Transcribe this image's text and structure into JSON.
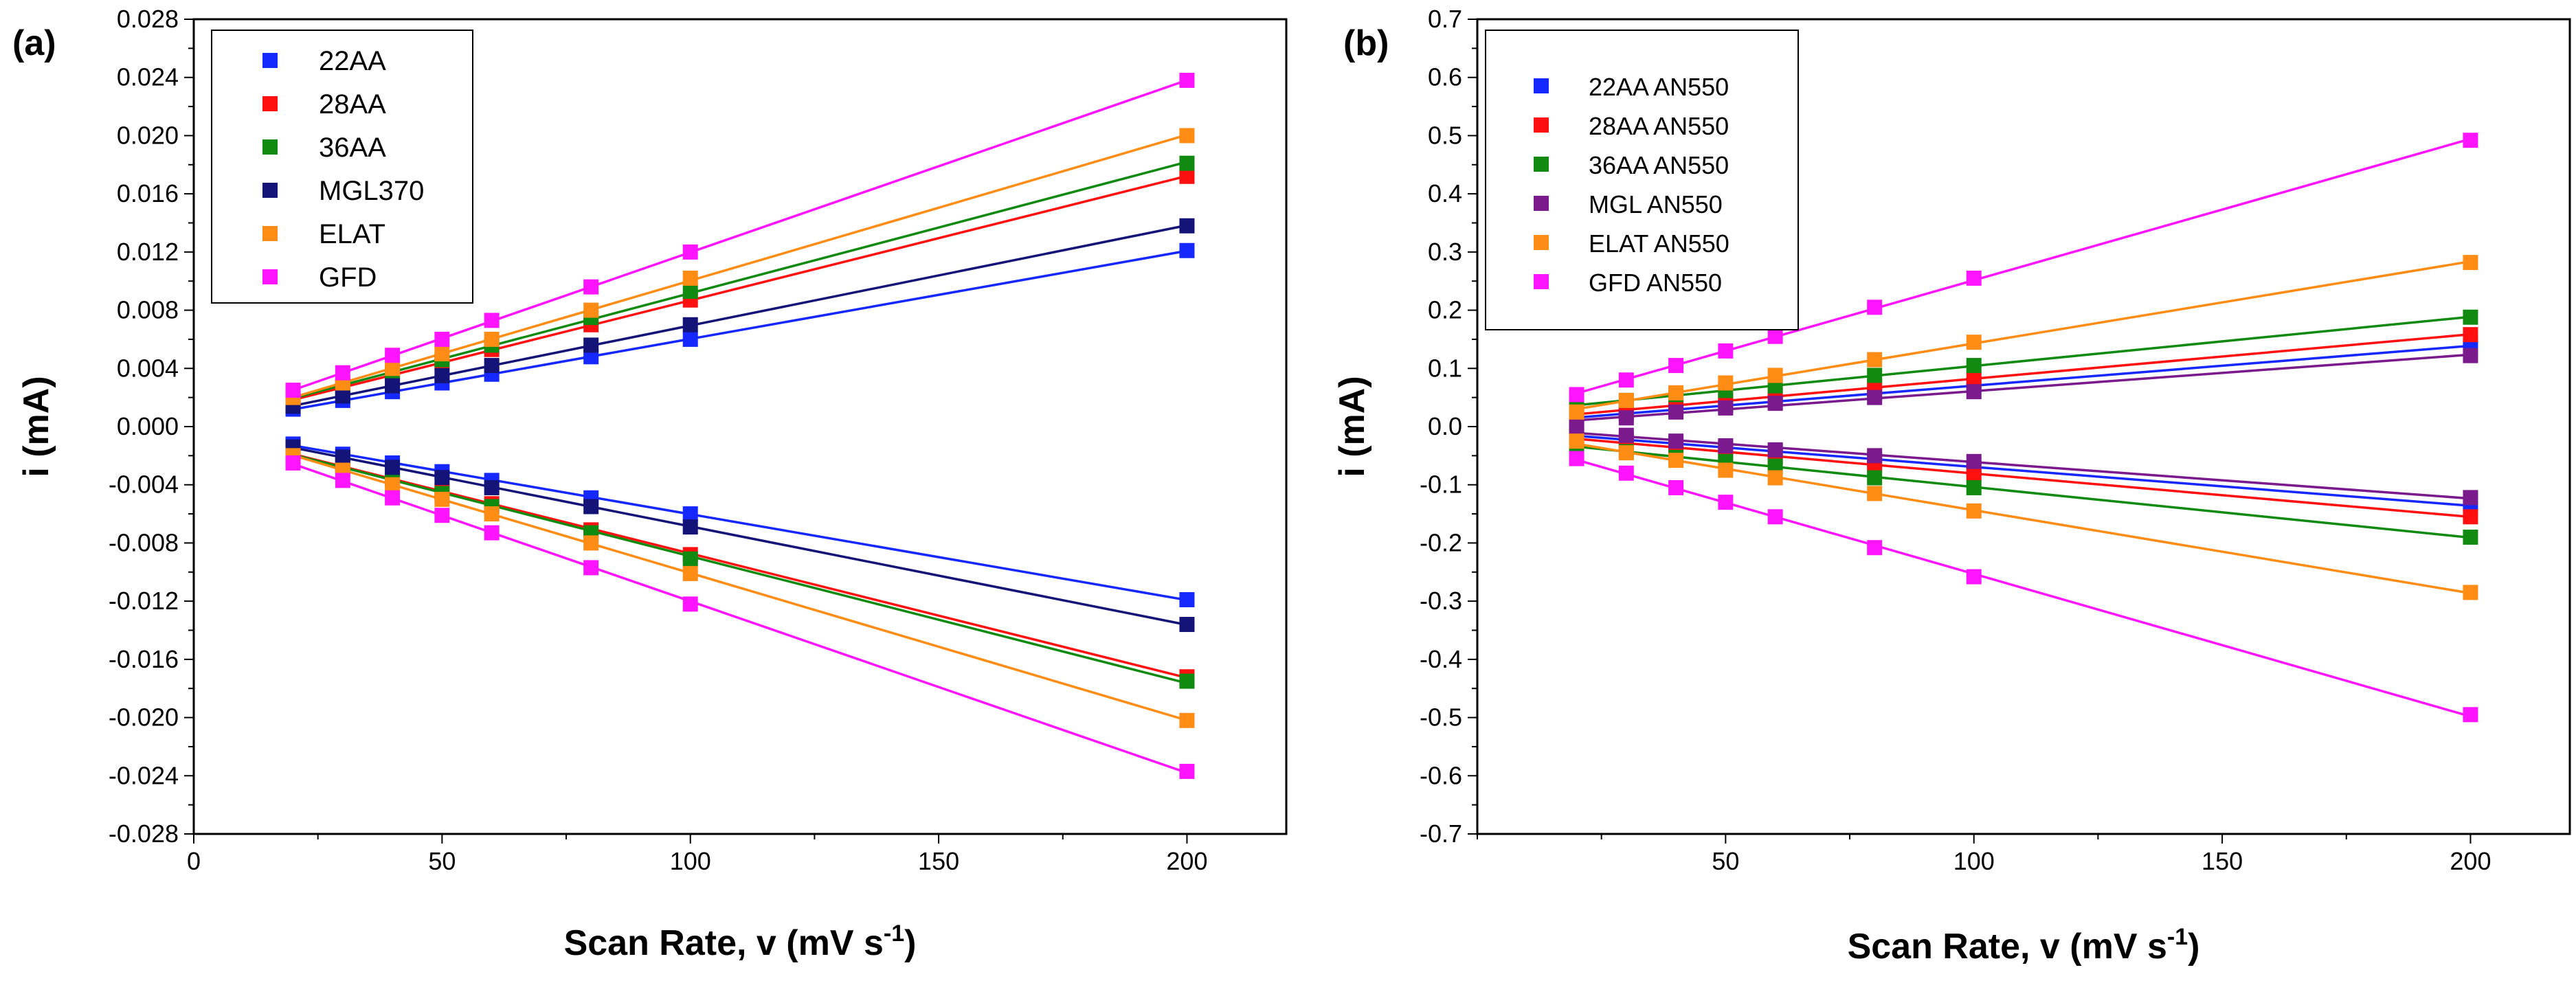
{
  "colors": {
    "22AA": "#1428ff",
    "28AA": "#ff1010",
    "36AA": "#108a10",
    "MGL370": "#141478",
    "ELAT": "#ff8c14",
    "GFD": "#ff14ff",
    "MGL_AN550": "#7a1a8c"
  },
  "chart_data": [
    {
      "panel": "(a)",
      "type": "scatter",
      "xlabel": "Scan Rate, v (mV s",
      "xlabel_sup": "-1",
      "xlabel_close": ")",
      "ylabel": "i (mA)",
      "xlim": [
        0,
        220
      ],
      "ylim": [
        -0.028,
        0.028
      ],
      "xticks": [
        0,
        50,
        100,
        150,
        200
      ],
      "yticks": [
        -0.028,
        -0.024,
        -0.02,
        -0.016,
        -0.012,
        -0.008,
        -0.004,
        0.0,
        0.004,
        0.008,
        0.012,
        0.016,
        0.02,
        0.024,
        0.028
      ],
      "ytick_labels": [
        "-0.028",
        "-0.024",
        "-0.020",
        "-0.016",
        "-0.012",
        "-0.008",
        "-0.004",
        "0.000",
        "0.004",
        "0.008",
        "0.012",
        "0.016",
        "0.020",
        "0.024",
        "0.028"
      ],
      "legend_position": "top-left",
      "x": [
        20,
        30,
        40,
        50,
        60,
        80,
        100,
        200
      ],
      "series": [
        {
          "name": "22AA",
          "color_key": "22AA",
          "positive": [
            0.0012,
            0.0018,
            0.0024,
            0.003,
            0.0036,
            0.0048,
            0.006,
            0.0121
          ],
          "negative": [
            -0.0012,
            -0.0019,
            -0.0025,
            -0.0031,
            -0.0037,
            -0.0049,
            -0.006,
            -0.0119
          ]
        },
        {
          "name": "28AA",
          "color_key": "28AA",
          "positive": [
            0.0018,
            0.0027,
            0.0035,
            0.0044,
            0.0053,
            0.007,
            0.0087,
            0.0172
          ],
          "negative": [
            -0.0018,
            -0.0027,
            -0.0036,
            -0.0045,
            -0.0053,
            -0.0071,
            -0.0088,
            -0.0172
          ]
        },
        {
          "name": "36AA",
          "color_key": "36AA",
          "positive": [
            0.0019,
            0.0028,
            0.0037,
            0.0046,
            0.0056,
            0.0075,
            0.0093,
            0.0181
          ],
          "negative": [
            -0.0018,
            -0.0027,
            -0.0036,
            -0.0046,
            -0.0055,
            -0.0073,
            -0.0091,
            -0.0175
          ]
        },
        {
          "name": "MGL370",
          "color_key": "MGL370",
          "positive": [
            0.0014,
            0.0021,
            0.0028,
            0.0035,
            0.0042,
            0.0056,
            0.007,
            0.0138
          ],
          "negative": [
            -0.0014,
            -0.0021,
            -0.0028,
            -0.0035,
            -0.0042,
            -0.0055,
            -0.0069,
            -0.0136
          ]
        },
        {
          "name": "ELAT",
          "color_key": "ELAT",
          "positive": [
            0.002,
            0.003,
            0.004,
            0.005,
            0.006,
            0.008,
            0.0102,
            0.02
          ],
          "negative": [
            -0.002,
            -0.003,
            -0.004,
            -0.005,
            -0.006,
            -0.008,
            -0.0101,
            -0.0202
          ]
        },
        {
          "name": "GFD",
          "color_key": "GFD",
          "positive": [
            0.0025,
            0.0037,
            0.0049,
            0.006,
            0.0073,
            0.0096,
            0.012,
            0.0238
          ],
          "negative": [
            -0.0025,
            -0.0037,
            -0.0049,
            -0.0061,
            -0.0073,
            -0.0097,
            -0.0122,
            -0.0237
          ]
        }
      ]
    },
    {
      "panel": "(b)",
      "type": "scatter",
      "xlabel": "Scan Rate, v (mV s",
      "xlabel_sup": "-1",
      "xlabel_close": ")",
      "ylabel": "i (mA)",
      "xlim": [
        0,
        220
      ],
      "ylim": [
        -0.7,
        0.7
      ],
      "xticks": [
        50,
        100,
        150,
        200
      ],
      "yticks": [
        -0.7,
        -0.6,
        -0.5,
        -0.4,
        -0.3,
        -0.2,
        -0.1,
        0.0,
        0.1,
        0.2,
        0.3,
        0.4,
        0.5,
        0.6,
        0.7
      ],
      "ytick_labels": [
        "-0.7",
        "-0.6",
        "-0.5",
        "-0.4",
        "-0.3",
        "-0.2",
        "-0.1",
        "0.0",
        "0.1",
        "0.2",
        "0.3",
        "0.4",
        "0.5",
        "0.6",
        "0.7"
      ],
      "legend_position": "top-left",
      "x": [
        20,
        30,
        40,
        50,
        60,
        80,
        100,
        200
      ],
      "series": [
        {
          "name": "22AA AN550",
          "color_key": "22AA",
          "positive": [
            0.015,
            0.022,
            0.029,
            0.036,
            0.043,
            0.057,
            0.072,
            0.138
          ],
          "negative": [
            -0.015,
            -0.022,
            -0.029,
            -0.036,
            -0.043,
            -0.057,
            -0.071,
            -0.135
          ]
        },
        {
          "name": "28AA AN550",
          "color_key": "28AA",
          "positive": [
            0.02,
            0.028,
            0.036,
            0.045,
            0.053,
            0.068,
            0.082,
            0.158
          ],
          "negative": [
            -0.02,
            -0.028,
            -0.036,
            -0.044,
            -0.052,
            -0.066,
            -0.08,
            -0.155
          ]
        },
        {
          "name": "36AA AN550",
          "color_key": "36AA",
          "positive": [
            0.035,
            0.045,
            0.055,
            0.062,
            0.07,
            0.088,
            0.105,
            0.188
          ],
          "negative": [
            -0.033,
            -0.043,
            -0.053,
            -0.06,
            -0.068,
            -0.088,
            -0.105,
            -0.19
          ]
        },
        {
          "name": "MGL AN550",
          "color_key": "MGL_AN550",
          "positive": [
            0.005,
            0.015,
            0.025,
            0.032,
            0.04,
            0.05,
            0.06,
            0.122
          ],
          "negative": [
            -0.005,
            -0.015,
            -0.025,
            -0.033,
            -0.04,
            -0.05,
            -0.06,
            -0.122
          ]
        },
        {
          "name": "ELAT AN550",
          "color_key": "ELAT",
          "positive": [
            0.025,
            0.045,
            0.058,
            0.075,
            0.088,
            0.115,
            0.145,
            0.282
          ],
          "negative": [
            -0.025,
            -0.045,
            -0.058,
            -0.075,
            -0.088,
            -0.115,
            -0.145,
            -0.285
          ]
        },
        {
          "name": "GFD AN550",
          "color_key": "GFD",
          "positive": [
            0.055,
            0.08,
            0.105,
            0.13,
            0.155,
            0.205,
            0.255,
            0.492
          ],
          "negative": [
            -0.055,
            -0.08,
            -0.105,
            -0.13,
            -0.155,
            -0.208,
            -0.258,
            -0.495
          ]
        }
      ]
    }
  ]
}
